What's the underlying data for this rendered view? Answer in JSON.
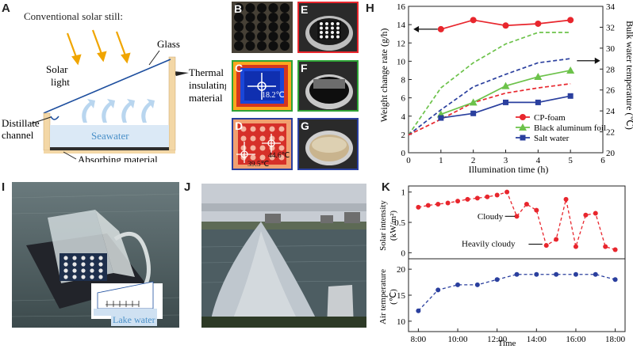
{
  "panels": {
    "A": {
      "letter": "A",
      "title": "Conventional solar still:",
      "labels": {
        "glass": "Glass",
        "solar_light_1": "Solar",
        "solar_light_2": "light",
        "thermal_1": "Thermal",
        "thermal_2": "insulating",
        "thermal_3": "material",
        "distillate_1": "Distillate",
        "distillate_2": "channel",
        "seawater": "Seawater",
        "absorbing": "Absorbing material"
      }
    },
    "B": {
      "letter": "B"
    },
    "C": {
      "letter": "C",
      "temp": "18.2℃"
    },
    "D": {
      "letter": "D",
      "temp_right": "44.6℃",
      "temp_left": "39.5℃"
    },
    "E": {
      "letter": "E"
    },
    "F": {
      "letter": "F"
    },
    "G": {
      "letter": "G"
    },
    "I": {
      "letter": "I",
      "lake_label": "Lake water"
    },
    "J": {
      "letter": "J"
    },
    "H": {
      "letter": "H"
    },
    "K": {
      "letter": "K"
    }
  },
  "chart_data": [
    {
      "id": "H",
      "type": "line",
      "xlabel": "Illumination time (h)",
      "ylabel_left": "Weight change rate (g/h)",
      "ylabel_right": "Bulk water temperature (℃)",
      "xlim": [
        0,
        6
      ],
      "xticks": [
        0,
        1,
        2,
        3,
        4,
        5,
        6
      ],
      "ylim_left": [
        0,
        16
      ],
      "yticks_left": [
        0,
        2,
        4,
        6,
        8,
        10,
        12,
        14,
        16
      ],
      "ylim_right": [
        20,
        34
      ],
      "yticks_right": [
        20,
        22,
        24,
        26,
        28,
        30,
        32,
        34
      ],
      "legend_position": "right",
      "series": [
        {
          "name": "CP-foam",
          "color": "#e8262d",
          "marker": "circle",
          "axis": "left",
          "x": [
            1,
            2,
            3,
            4,
            5
          ],
          "y": [
            13.5,
            14.5,
            13.9,
            14.1,
            14.5
          ]
        },
        {
          "name": "Black aluminum foil",
          "color": "#6cc24a",
          "marker": "triangle",
          "axis": "left",
          "x": [
            1,
            2,
            3,
            4,
            5
          ],
          "y": [
            4.2,
            5.5,
            7.3,
            8.3,
            9.0
          ]
        },
        {
          "name": "Salt water",
          "color": "#2a3f9e",
          "marker": "square",
          "axis": "left",
          "x": [
            1,
            2,
            3,
            4,
            5
          ],
          "y": [
            3.8,
            4.3,
            5.5,
            5.5,
            6.2
          ]
        }
      ],
      "temperature_series": [
        {
          "color": "#6cc24a",
          "x": [
            0,
            1,
            2,
            3,
            4,
            5
          ],
          "y": [
            21.7,
            26.2,
            28.6,
            30.4,
            31.5,
            31.5
          ]
        },
        {
          "color": "#2a3f9e",
          "x": [
            0,
            1,
            2,
            3,
            4,
            5
          ],
          "y": [
            21.7,
            24.1,
            26.3,
            27.5,
            28.6,
            29.0
          ]
        },
        {
          "color": "#e8262d",
          "x": [
            0,
            1,
            2,
            3,
            4,
            5
          ],
          "y": [
            21.7,
            23.2,
            24.8,
            25.7,
            26.2,
            26.6
          ]
        }
      ]
    },
    {
      "id": "K",
      "type": "line",
      "xlabel": "Time",
      "xticks": [
        "8:00",
        "10:00",
        "12:00",
        "14:00",
        "16:00",
        "18:00"
      ],
      "xlim": [
        7.5,
        18.5
      ],
      "top": {
        "ylabel": "Solar intensity (kW/m²)",
        "ylabel_1": "Solar intensity",
        "ylabel_2": "(kW/m²)",
        "ylim": [
          -0.1,
          1.1
        ],
        "yticks": [
          0,
          0.5,
          1
        ],
        "color": "#e8262d",
        "x": [
          8,
          8.5,
          9,
          9.5,
          10,
          10.5,
          11,
          11.5,
          12,
          12.5,
          13,
          13.5,
          14,
          14.5,
          15,
          15.5,
          16,
          16.5,
          17,
          17.5,
          18
        ],
        "y": [
          0.75,
          0.78,
          0.8,
          0.82,
          0.85,
          0.88,
          0.9,
          0.92,
          0.95,
          1.0,
          0.6,
          0.8,
          0.7,
          0.12,
          0.22,
          0.88,
          0.1,
          0.62,
          0.65,
          0.1,
          0.05
        ],
        "annotations": [
          "Cloudy",
          "Heavily cloudy"
        ]
      },
      "bottom": {
        "ylabel": "Air temperature (℃)",
        "ylabel_1": "Air temperature",
        "ylabel_2": "(℃)",
        "ylim": [
          8,
          22
        ],
        "yticks": [
          10,
          15,
          20
        ],
        "color": "#2a3f9e",
        "x": [
          8,
          9,
          10,
          11,
          12,
          13,
          14,
          15,
          16,
          17,
          18
        ],
        "y": [
          12,
          16,
          17,
          17,
          18,
          19,
          19,
          19,
          19,
          19,
          18
        ]
      }
    }
  ]
}
